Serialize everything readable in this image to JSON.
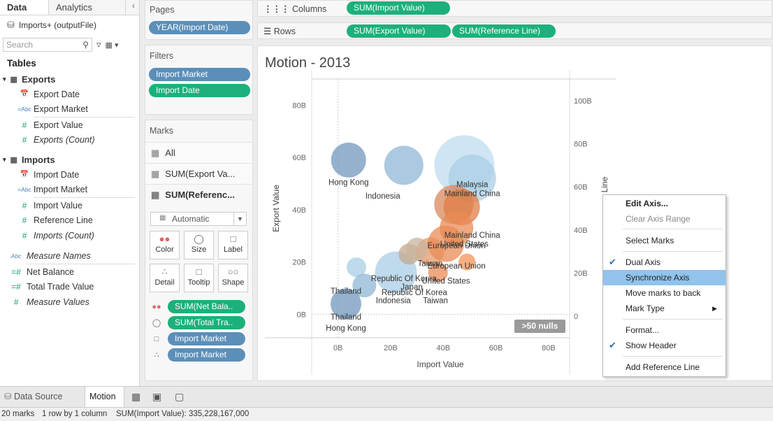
{
  "data_pane": {
    "tabs": [
      "Data",
      "Analytics"
    ],
    "source": "Imports+ (outputFile)",
    "search_placeholder": "Search",
    "tables_label": "Tables",
    "groups": [
      {
        "name": "Exports",
        "fields": [
          {
            "type": "date",
            "name": "Export Date",
            "italic": false
          },
          {
            "type": "abc",
            "name": "Export Market",
            "italic": false
          },
          {
            "type": "measure",
            "name": "Export Value",
            "italic": false
          },
          {
            "type": "measure",
            "name": "Exports (Count)",
            "italic": true
          }
        ]
      },
      {
        "name": "Imports",
        "fields": [
          {
            "type": "date",
            "name": "Import Date",
            "italic": false
          },
          {
            "type": "abc",
            "name": "Import Market",
            "italic": false
          },
          {
            "type": "measure",
            "name": "Import Value",
            "italic": false
          },
          {
            "type": "measure",
            "name": "Reference Line",
            "italic": false
          },
          {
            "type": "measure",
            "name": "Imports (Count)",
            "italic": true
          }
        ]
      }
    ],
    "extra": [
      {
        "type": "abc",
        "name": "Measure Names",
        "italic": true
      },
      {
        "type": "measure",
        "name": "Net Balance",
        "italic": false
      },
      {
        "type": "measure",
        "name": "Total Trade Value",
        "italic": false
      },
      {
        "type": "measure",
        "name": "Measure Values",
        "italic": true
      }
    ]
  },
  "pages": {
    "label": "Pages",
    "pill": "YEAR(Import Date)"
  },
  "filters": {
    "label": "Filters",
    "pills": [
      "Import Market",
      "Import Date"
    ]
  },
  "marks": {
    "label": "Marks",
    "rows": [
      "All",
      "SUM(Export Va...",
      "SUM(Referenc..."
    ],
    "mark_type": "Automatic",
    "buttons": [
      "Color",
      "Size",
      "Label",
      "Detail",
      "Tooltip",
      "Shape"
    ],
    "pills": [
      "SUM(Net Bala..",
      "SUM(Total Tra..",
      "Import Market",
      "Import Market"
    ]
  },
  "columns": {
    "label": "Columns",
    "pills": [
      "SUM(Import Value)"
    ]
  },
  "rows_shelf": {
    "label": "Rows",
    "pills": [
      "SUM(Export Value)",
      "SUM(Reference Line)"
    ]
  },
  "view": {
    "title": "Motion - 2013",
    "nulls_badge": ">50 nulls",
    "right_axis_label": "Line"
  },
  "chart_data": {
    "type": "scatter",
    "title": "Motion - 2013",
    "xlabel": "Import Value",
    "ylabel": "Export Value",
    "x_ticks": [
      "0B",
      "20B",
      "40B",
      "60B",
      "80B"
    ],
    "y_ticks": [
      "0B",
      "20B",
      "40B",
      "60B",
      "80B"
    ],
    "y2_ticks": [
      "0",
      "20B",
      "40B",
      "60B",
      "80B",
      "100B"
    ],
    "xlim": [
      -10,
      88
    ],
    "ylim": [
      -9,
      90
    ],
    "y2lim": [
      -10,
      110
    ],
    "points": [
      {
        "x": 4,
        "y": 59,
        "r": 25,
        "color": "#7098be",
        "label": "Hong Kong"
      },
      {
        "x": 25,
        "y": 57,
        "r": 28,
        "color": "#8fb7d6",
        "label": ""
      },
      {
        "x": 22,
        "y": 16,
        "r": 30,
        "color": "#a9cde6",
        "label": ""
      },
      {
        "x": 7,
        "y": 18,
        "r": 14,
        "color": "#a9cde6",
        "label": ""
      },
      {
        "x": 10,
        "y": 11,
        "r": 17,
        "color": "#8fb7d6",
        "label": ""
      },
      {
        "x": 3,
        "y": 4,
        "r": 22,
        "color": "#7098be",
        "label": ""
      },
      {
        "x": 27,
        "y": 23,
        "r": 15,
        "color": "#c3a88f",
        "label": ""
      },
      {
        "x": 35,
        "y": 24,
        "r": 20,
        "color": "#e49a68",
        "label": ""
      },
      {
        "x": 41,
        "y": 27,
        "r": 26,
        "color": "#e98b55",
        "label": ""
      },
      {
        "x": 38,
        "y": 16,
        "r": 14,
        "color": "#e98b55",
        "label": ""
      },
      {
        "x": 49,
        "y": 20,
        "r": 12,
        "color": "#f09458",
        "label": ""
      },
      {
        "x": 48,
        "y": 57,
        "r": 43,
        "color": "#bfdcef",
        "label": ""
      },
      {
        "x": 51,
        "y": 52,
        "r": 34,
        "color": "#a9cde6",
        "label": ""
      },
      {
        "x": 44,
        "y": 42,
        "r": 28,
        "color": "#d9885b",
        "label": ""
      },
      {
        "x": 47,
        "y": 41,
        "r": 26,
        "color": "#e07c45",
        "label": ""
      },
      {
        "x": 45,
        "y": 33,
        "r": 24,
        "color": "#e98b55",
        "label": ""
      },
      {
        "x": 30,
        "y": 25,
        "r": 16,
        "color": "#c9b39c",
        "label": ""
      }
    ],
    "labels": [
      {
        "x": 4,
        "y": 49.5,
        "text": "Hong Kong"
      },
      {
        "x": 17,
        "y": 44.3,
        "text": "Indonesia"
      },
      {
        "x": 51,
        "y": 48.7,
        "text": "Malaysia"
      },
      {
        "x": 51,
        "y": 45.2,
        "text": "Mainland China"
      },
      {
        "x": 51,
        "y": 29.3,
        "text": "Mainland China"
      },
      {
        "x": 48,
        "y": 25.9,
        "text": "United States"
      },
      {
        "x": 45,
        "y": 25.2,
        "text": "European Union"
      },
      {
        "x": 35,
        "y": 18.4,
        "text": "Taiwan"
      },
      {
        "x": 45,
        "y": 17.5,
        "text": "European Union"
      },
      {
        "x": 25,
        "y": 12.7,
        "text": "Republic Of Korea"
      },
      {
        "x": 28,
        "y": 9.5,
        "text": "Japan"
      },
      {
        "x": 29,
        "y": 7.3,
        "text": "Republic Of Korea"
      },
      {
        "x": 41,
        "y": 11.7,
        "text": "United States"
      },
      {
        "x": 3,
        "y": 7.9,
        "text": "Thailand"
      },
      {
        "x": 21,
        "y": 4.3,
        "text": "Indonesia"
      },
      {
        "x": 37,
        "y": 4.3,
        "text": "Taiwan"
      },
      {
        "x": 3,
        "y": -2.1,
        "text": "Thailand"
      },
      {
        "x": 3,
        "y": -6.3,
        "text": "Hong Kong"
      }
    ]
  },
  "context_menu": {
    "items": [
      "Edit Axis...",
      "Clear Axis Range",
      "Select Marks",
      "Dual Axis",
      "Synchronize Axis",
      "Move marks to back",
      "Mark Type",
      "Format...",
      "Show Header",
      "Add Reference Line"
    ]
  },
  "bottom_tabs": {
    "source": "Data Source",
    "sheet": "Motion"
  },
  "status": {
    "marks": "20 marks",
    "rows": "1 row by 1 column",
    "sum": "SUM(Import Value): 335,228,167,000"
  }
}
